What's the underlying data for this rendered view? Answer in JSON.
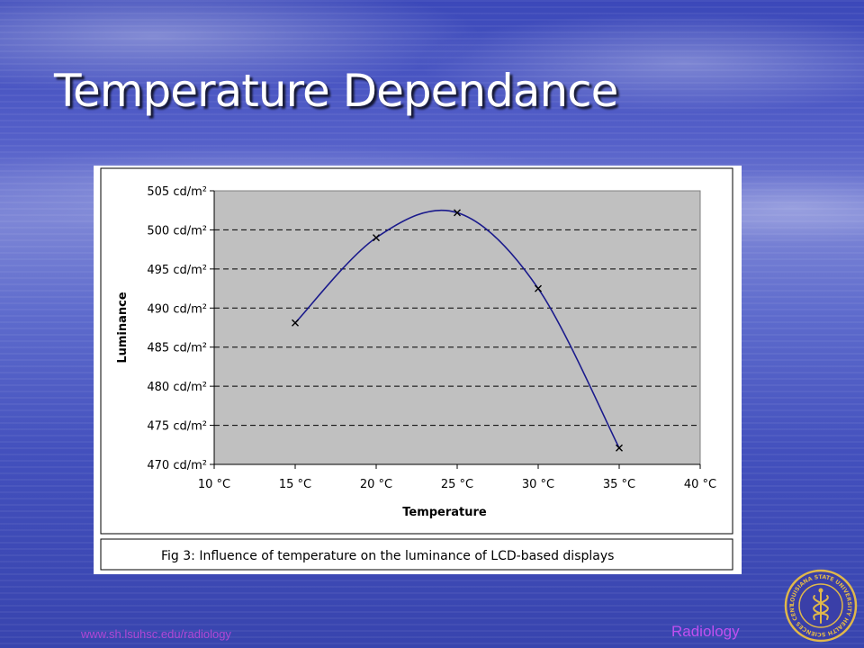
{
  "slide": {
    "title": "Temperature Dependance",
    "footer_url": "www.sh.lsuhsc.edu/radiology",
    "footer_brand": "Radiology",
    "seal_text": "LOUISIANA STATE UNIVERSITY HEALTH SCIENCES CENTER"
  },
  "chart_data": {
    "type": "line",
    "title": "",
    "caption": "Fig 3: Influence of temperature on the luminance of LCD-based displays",
    "xlabel": "Temperature",
    "ylabel": "Luminance",
    "x_ticks": [
      "10 °C",
      "15 °C",
      "20 °C",
      "25 °C",
      "30 °C",
      "35 °C",
      "40 °C"
    ],
    "y_ticks": [
      "505 cd/m²",
      "500 cd/m²",
      "495 cd/m²",
      "490 cd/m²",
      "485 cd/m²",
      "480 cd/m²",
      "475 cd/m²",
      "470 cd/m²"
    ],
    "xlim": [
      10,
      40
    ],
    "ylim": [
      470,
      505
    ],
    "x_unit": "°C",
    "y_unit": "cd/m²",
    "grid": "horizontal-dashed",
    "legend": "none",
    "series": [
      {
        "x": [
          15,
          20,
          25,
          30,
          35
        ],
        "y": [
          488.1,
          499.0,
          502.2,
          492.5,
          472.1
        ],
        "marker": "x",
        "smooth": true
      }
    ],
    "colors": {
      "plot_background": "#c0c0c0",
      "line": "#1a1a8c",
      "marker": "#000000"
    }
  }
}
